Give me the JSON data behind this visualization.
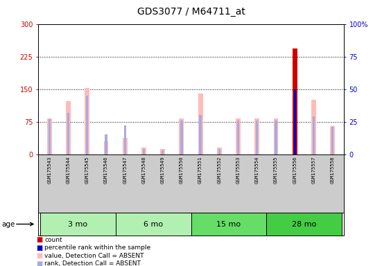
{
  "title": "GDS3077 / M64711_at",
  "samples": [
    "GSM175543",
    "GSM175544",
    "GSM175545",
    "GSM175546",
    "GSM175547",
    "GSM175548",
    "GSM175549",
    "GSM175550",
    "GSM175551",
    "GSM175552",
    "GSM175553",
    "GSM175554",
    "GSM175555",
    "GSM175556",
    "GSM175557",
    "GSM175558"
  ],
  "groups": [
    {
      "label": "3 mo",
      "color": "#b2f0b2",
      "indices": [
        0,
        1,
        2,
        3
      ]
    },
    {
      "label": "6 mo",
      "color": "#b2f0b2",
      "indices": [
        4,
        5,
        6,
        7
      ]
    },
    {
      "label": "15 mo",
      "color": "#66dd66",
      "indices": [
        8,
        9,
        10,
        11
      ]
    },
    {
      "label": "28 mo",
      "color": "#44cc44",
      "indices": [
        12,
        13,
        14,
        15
      ]
    }
  ],
  "value_bars": [
    82,
    122,
    152,
    30,
    38,
    15,
    13,
    82,
    140,
    15,
    82,
    82,
    82,
    243,
    125,
    65
  ],
  "rank_bars_pct": [
    27,
    32,
    45,
    15,
    22,
    4,
    3,
    26,
    30,
    4,
    26,
    26,
    26,
    50,
    29,
    21
  ],
  "is_absent_value": [
    true,
    true,
    true,
    true,
    true,
    true,
    true,
    true,
    true,
    true,
    true,
    true,
    true,
    false,
    true,
    true
  ],
  "is_absent_rank": [
    true,
    true,
    true,
    true,
    true,
    true,
    true,
    true,
    true,
    true,
    true,
    true,
    true,
    false,
    true,
    true
  ],
  "value_color_absent": "#ffbbbb",
  "value_color_present": "#cc0000",
  "rank_color_absent": "#aaaadd",
  "rank_color_present": "#0000cc",
  "ylim_left": [
    0,
    300
  ],
  "ylim_right": [
    0,
    100
  ],
  "yticks_left": [
    0,
    75,
    150,
    225,
    300
  ],
  "yticks_right": [
    0,
    25,
    50,
    75,
    100
  ],
  "ytick_labels_left": [
    "0",
    "75",
    "150",
    "225",
    "300"
  ],
  "ytick_labels_right": [
    "0",
    "25",
    "50",
    "75",
    "100%"
  ],
  "background_color": "#ffffff",
  "plot_bg_color": "#ffffff",
  "tick_label_area_color": "#cccccc",
  "title_fontsize": 10,
  "tick_fontsize": 7,
  "age_label": "age",
  "group_label_fontsize": 8,
  "legend_items": [
    {
      "color": "#cc0000",
      "label": "count"
    },
    {
      "color": "#0000cc",
      "label": "percentile rank within the sample"
    },
    {
      "color": "#ffbbbb",
      "label": "value, Detection Call = ABSENT"
    },
    {
      "color": "#aaaadd",
      "label": "rank, Detection Call = ABSENT"
    }
  ]
}
